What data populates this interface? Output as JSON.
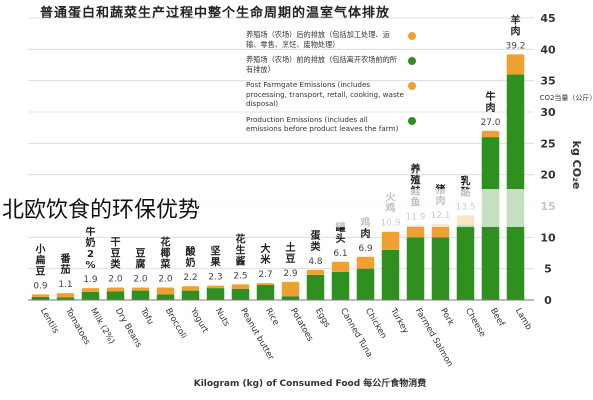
{
  "title": "普通蛋白和蔬菜生产过程中整个生命周期的温室气体排放",
  "legend": [
    {
      "label": "养殖场（农场）后的排放（包括加工处理、运输、零售、烹饪、废物处理）",
      "color": "#f0a030"
    },
    {
      "label": "养殖场（农场）前的排放（包括离开农场前的所有排放）",
      "color": "#2f8f1f"
    },
    {
      "label": "Post Farmgate Emissions (includes processing, transport, retail, cooking, waste disposal)",
      "color": "#f0a030"
    },
    {
      "label": "Production Emissions (includes all emissions before product leaves the farm)",
      "color": "#2f8f1f"
    }
  ],
  "overlay_caption": "北欧饮食的环保优势",
  "chart_data": {
    "type": "bar",
    "stacked": true,
    "categories": [
      "Lentils",
      "Tomatoes",
      "Milk (2%)",
      "Dry Beans",
      "Tofu",
      "Broccoli",
      "Yogurt",
      "Nuts",
      "Peanut butter",
      "Rice",
      "Potatoes",
      "Eggs",
      "Canned Tuna",
      "Chicken",
      "Turkey",
      "Farmed Salmon",
      "Pork",
      "Cheese",
      "Beef",
      "Lamb"
    ],
    "categories_cn": [
      "小扁豆",
      "番茄",
      "牛奶2%",
      "干豆类",
      "豆腐",
      "花椰菜",
      "酸奶",
      "坚果",
      "花生酱",
      "大米",
      "土豆",
      "蛋类",
      "罐头",
      "鸡肉",
      "火鸡",
      "养殖鲑鱼",
      "猪肉",
      "乳酪",
      "牛肉",
      "羊肉"
    ],
    "totals": [
      0.9,
      1.1,
      1.9,
      2.0,
      2.0,
      2.0,
      2.2,
      2.3,
      2.5,
      2.7,
      2.9,
      4.8,
      6.1,
      6.9,
      10.9,
      11.9,
      12.1,
      13.5,
      27.0,
      39.2
    ],
    "total_labels": [
      "0.9",
      "1.1",
      "1.9",
      "2.0",
      "2.0",
      "2.0",
      "2.2",
      "2.3",
      "2.5",
      "2.7",
      "2.9",
      "4.8",
      "6.1",
      "6.9",
      "10.9",
      "11.9",
      "12.1",
      "13.5",
      "27.0",
      "39.2"
    ],
    "series": [
      {
        "name": "Production Emissions",
        "values": [
          0.5,
          0.4,
          1.3,
          1.4,
          1.5,
          0.9,
          1.5,
          1.9,
          1.8,
          2.4,
          0.6,
          4.0,
          4.5,
          5.0,
          8.0,
          10.0,
          10.0,
          12.0,
          26.0,
          36.0
        ]
      },
      {
        "name": "Post Farmgate Emissions",
        "values": [
          0.4,
          0.7,
          0.6,
          0.6,
          0.5,
          1.1,
          0.7,
          0.4,
          0.7,
          0.3,
          2.3,
          0.8,
          1.6,
          1.9,
          2.9,
          1.9,
          2.1,
          1.5,
          1.0,
          3.2
        ]
      }
    ],
    "yticks": [
      0,
      5,
      10,
      15,
      20,
      25,
      30,
      35,
      40,
      45
    ],
    "ylim": [
      0,
      45
    ],
    "ylabel": "kg CO₂e",
    "ylabel_cn": "CO2当量（公斤）",
    "xlabel": "Kilogram (kg) of Consumed Food 每公斤食物消费",
    "colors": {
      "production": "#2f8f1f",
      "post": "#f0a030"
    }
  }
}
